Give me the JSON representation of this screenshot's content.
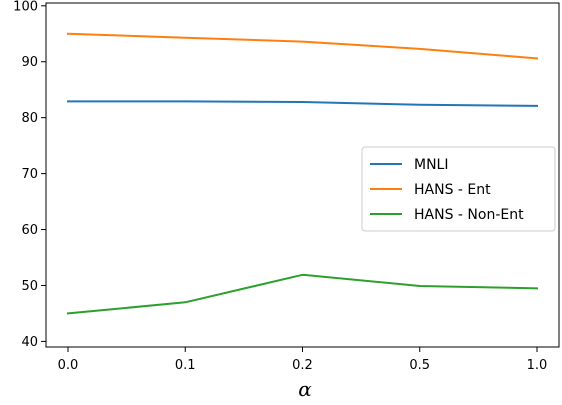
{
  "chart_data": {
    "type": "line",
    "title": "",
    "xlabel": "α",
    "ylabel": "",
    "categories": [
      "0.0",
      "0.1",
      "0.2",
      "0.5",
      "1.0"
    ],
    "ylim": [
      39,
      100.5
    ],
    "yticks": [
      40,
      50,
      60,
      70,
      80,
      90,
      100
    ],
    "grid": false,
    "legend_position": "center-right",
    "series": [
      {
        "name": "MNLI",
        "color": "#1f77b4",
        "values": [
          82.9,
          82.9,
          82.8,
          82.3,
          82.1
        ]
      },
      {
        "name": "HANS - Ent",
        "color": "#ff7f0e",
        "values": [
          95.0,
          94.3,
          93.6,
          92.3,
          90.6
        ]
      },
      {
        "name": "HANS - Non-Ent",
        "color": "#2ca02c",
        "values": [
          45.0,
          47.0,
          51.9,
          49.9,
          49.5
        ]
      }
    ]
  }
}
